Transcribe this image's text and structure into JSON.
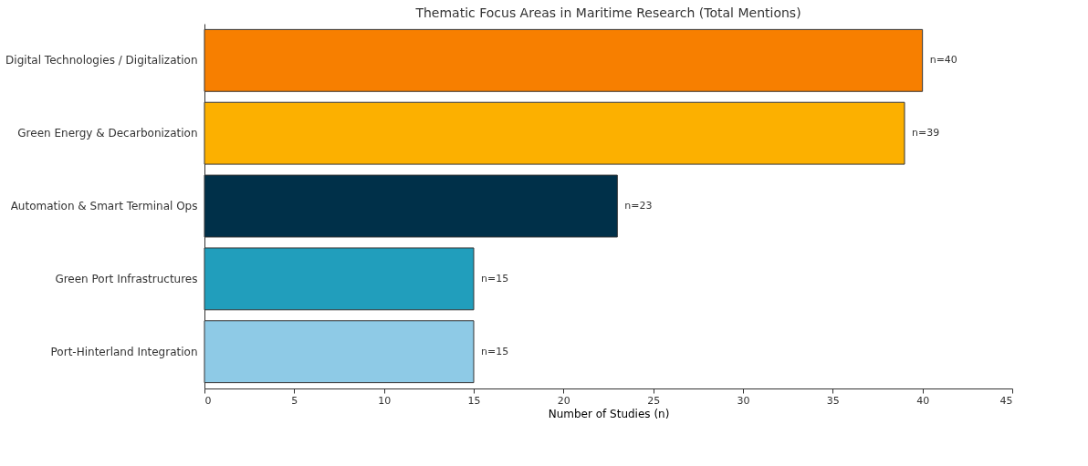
{
  "chart_data": {
    "type": "bar",
    "orientation": "horizontal",
    "title": "Thematic Focus Areas in Maritime Research (Total Mentions)",
    "xlabel": "Number of Studies (n)",
    "categories": [
      "Digital Technologies / Digitalization",
      "Green Energy & Decarbonization",
      "Automation & Smart Terminal Ops",
      "Green Port Infrastructures",
      "Port-Hinterland Integration"
    ],
    "values": [
      40,
      39,
      23,
      15,
      15
    ],
    "colors": [
      "#f77f00",
      "#fcb000",
      "#003049",
      "#219ebc",
      "#8ecae6"
    ],
    "value_labels": [
      "n=40",
      "n=39",
      "n=23",
      "n=15",
      "n=15"
    ],
    "xlim": [
      0,
      45
    ],
    "xticks": [
      0,
      5,
      10,
      15,
      20,
      25,
      30,
      35,
      40,
      45
    ],
    "grid": false
  }
}
